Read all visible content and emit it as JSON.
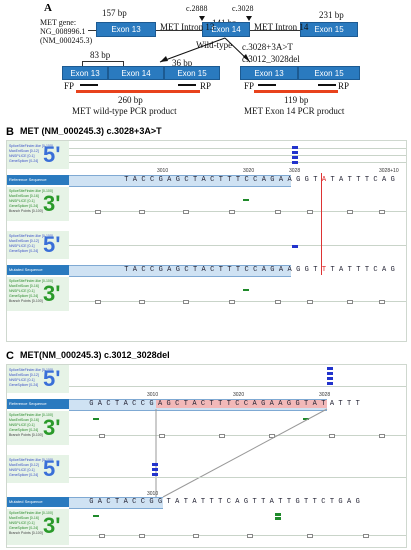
{
  "panelA": {
    "label": "A",
    "gene": [
      "MET gene:",
      "NG_008996.1",
      "(NM_000245.3)"
    ],
    "exons": [
      "Exon 13",
      "Exon 14",
      "Exon 15"
    ],
    "introns": [
      "MET Intron 13",
      "MET Intron 14"
    ],
    "sizes": [
      "157 bp",
      "141 bp",
      "231 bp"
    ],
    "markers": [
      "c.2888",
      "c.3028"
    ],
    "wildtype": "Wild-type",
    "mutants": [
      "c.3028+3A>T",
      "c.3012_3028del"
    ],
    "left_product": {
      "exons": [
        "Exon 13",
        "Exon 14",
        "Exon 15"
      ],
      "bp_left": "83 bp",
      "bp_right": "36 bp",
      "fp": "FP",
      "rp": "RP",
      "size": "260 bp",
      "caption": "MET wild-type PCR product"
    },
    "right_product": {
      "exons": [
        "Exon 13",
        "Exon 15"
      ],
      "fp": "FP",
      "rp": "RP",
      "size": "119 bp",
      "caption": "MET Exon 14 PCR product"
    }
  },
  "panelB": {
    "label": "B",
    "title": "MET (NM_000245.3) c.3028+3A>T",
    "track_labels_5": [
      "SpliceSiteFinder-like [0-100]",
      "MaxEntScan [0-12]",
      "NNSPLICE [0-1]",
      "GeneSplicer [0-24]"
    ],
    "track_labels_3": [
      "SpliceSiteFinder-like [0-100]",
      "MaxEntScan [0-16]",
      "NNSPLICE [0-1]",
      "GeneSplicer [0-24]",
      "Branch Points [0-100]"
    ],
    "ref_label": "Reference Sequence",
    "mut_label": "Mutated Sequence",
    "ticks": [
      "3010",
      "3020",
      "3028",
      "3028+10"
    ],
    "ref_seq": [
      "T",
      "A",
      "C",
      "C",
      "G",
      "A",
      "G",
      "C",
      "T",
      "A",
      "C",
      "T",
      "T",
      "T",
      "C",
      "C",
      "A",
      "G",
      "A",
      "A",
      "G",
      "G",
      "T",
      "A",
      "T",
      "A",
      "T",
      "T",
      "T",
      "C",
      "A",
      "G"
    ],
    "mut_seq": [
      "T",
      "A",
      "C",
      "C",
      "G",
      "A",
      "G",
      "C",
      "T",
      "A",
      "C",
      "T",
      "T",
      "T",
      "C",
      "C",
      "A",
      "G",
      "A",
      "A",
      "G",
      "G",
      "T",
      "T",
      "T",
      "A",
      "T",
      "T",
      "T",
      "C",
      "A",
      "G"
    ],
    "five": "5'",
    "three": "3'"
  },
  "panelC": {
    "label": "C",
    "title": "MET(NM_000245.3) c.3012_3028del",
    "track_labels_5": [
      "SpliceSiteFinder-like [0-100]",
      "MaxEntScan [0-12]",
      "NNSPLICE [0-1]",
      "GeneSplicer [0-24]"
    ],
    "track_labels_3": [
      "SpliceSiteFinder-like [0-100]",
      "MaxEntScan [0-16]",
      "NNSPLICE [0-1]",
      "GeneSplicer [0-24]",
      "Branch Points [0-100]"
    ],
    "ref_label": "Reference Sequence",
    "mut_label": "Mutated Sequence",
    "ticks_ref": [
      "3010",
      "3020",
      "3028"
    ],
    "ticks_mut": [
      "3010"
    ],
    "ref_seq": [
      "G",
      "A",
      "C",
      "T",
      "A",
      "C",
      "C",
      "G",
      "A",
      "G",
      "C",
      "T",
      "A",
      "C",
      "T",
      "T",
      "T",
      "C",
      "C",
      "A",
      "G",
      "A",
      "A",
      "G",
      "G",
      "T",
      "A",
      "T",
      "A",
      "T",
      "T",
      "T"
    ],
    "mut_seq": [
      "G",
      "A",
      "C",
      "T",
      "A",
      "C",
      "C",
      "G",
      "G",
      "T",
      "A",
      "T",
      "A",
      "T",
      "T",
      "T",
      "C",
      "A",
      "G",
      "T",
      "T",
      "A",
      "T",
      "T",
      "G",
      "T",
      "T",
      "C",
      "T",
      "G",
      "A",
      "G"
    ],
    "five": "5'",
    "three": "3'"
  }
}
